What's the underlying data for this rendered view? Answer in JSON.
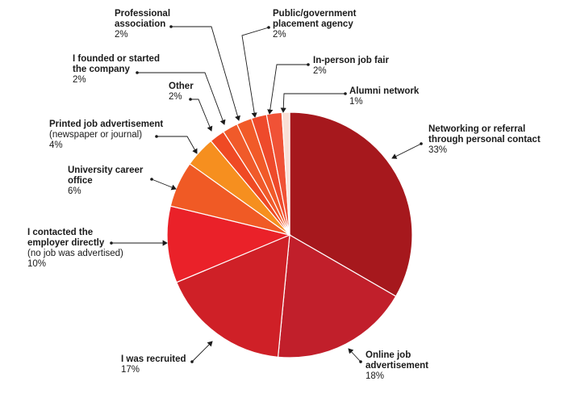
{
  "chart_data": {
    "type": "pie",
    "start": "top",
    "direction": "clockwise",
    "slices": [
      {
        "label": [
          "Networking or referral",
          "through personal contact"
        ],
        "sublabel": [],
        "pct": "33%",
        "value": 33,
        "color": "#a6181d"
      },
      {
        "label": [
          "Online job",
          "advertisement"
        ],
        "sublabel": [],
        "pct": "18%",
        "value": 18,
        "color": "#c11f2b"
      },
      {
        "label": [
          "I was recruited"
        ],
        "sublabel": [],
        "pct": "17%",
        "value": 17,
        "color": "#cf2027"
      },
      {
        "label": [
          "I contacted the",
          "employer directly"
        ],
        "sublabel": [
          "(no job was advertised)"
        ],
        "pct": "10%",
        "value": 10,
        "color": "#ea2129"
      },
      {
        "label": [
          "University career",
          "office"
        ],
        "sublabel": [],
        "pct": "6%",
        "value": 6,
        "color": "#f05a25"
      },
      {
        "label": [
          "Printed job advertisement"
        ],
        "sublabel": [
          "(newspaper or journal)"
        ],
        "pct": "4%",
        "value": 4,
        "color": "#f68f1f"
      },
      {
        "label": [
          "Other"
        ],
        "sublabel": [],
        "pct": "2%",
        "value": 2,
        "color": "#ef4a24"
      },
      {
        "label": [
          "I founded or started",
          "the company"
        ],
        "sublabel": [],
        "pct": "2%",
        "value": 2,
        "color": "#f05a2a"
      },
      {
        "label": [
          "Professional",
          "association"
        ],
        "sublabel": [],
        "pct": "2%",
        "value": 2,
        "color": "#f15a28"
      },
      {
        "label": [
          "Public/government",
          "placement agency"
        ],
        "sublabel": [],
        "pct": "2%",
        "value": 2,
        "color": "#ee4a2b"
      },
      {
        "label": [
          "In-person job fair"
        ],
        "sublabel": [],
        "pct": "2%",
        "value": 2,
        "color": "#f05236"
      },
      {
        "label": [
          "Alumni network"
        ],
        "sublabel": [],
        "pct": "1%",
        "value": 1,
        "color": "#f9dfd5"
      }
    ]
  }
}
